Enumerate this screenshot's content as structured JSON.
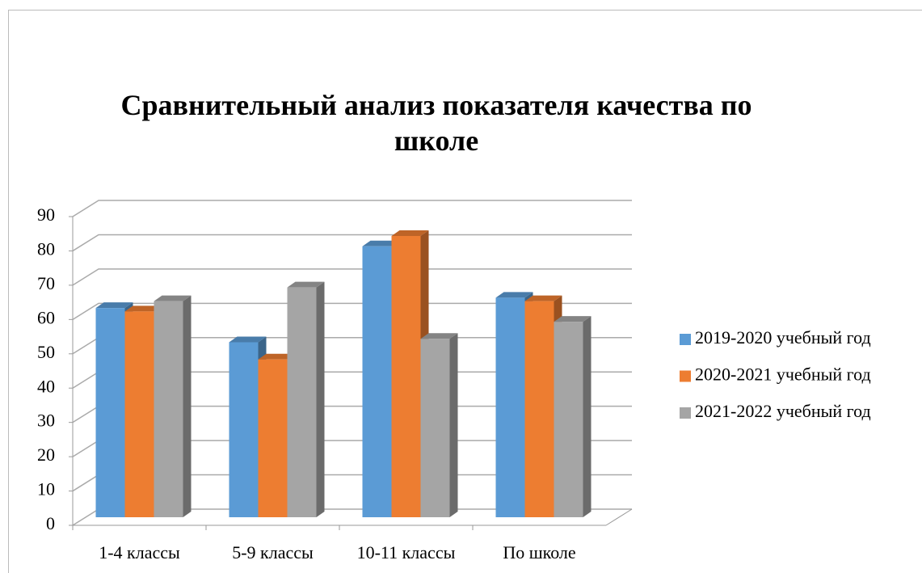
{
  "chart_data": {
    "type": "bar3d",
    "title": "Сравнительный анализ показателя качества по школе",
    "categories": [
      "1-4 классы",
      "5-9 классы",
      "10-11 классы",
      "По школе"
    ],
    "series": [
      {
        "name": "2019-2020 учебный год",
        "color": "#5b9bd5",
        "values": [
          61,
          51,
          79,
          64
        ]
      },
      {
        "name": "2020-2021 учебный год",
        "color": "#ed7d31",
        "values": [
          60,
          46,
          82,
          63
        ]
      },
      {
        "name": "2021-2022 учебный год",
        "color": "#a5a5a5",
        "values": [
          63,
          67,
          52,
          57
        ]
      }
    ],
    "ylim": [
      0,
      90
    ],
    "yticks": [
      0,
      10,
      20,
      30,
      40,
      50,
      60,
      70,
      80,
      90
    ],
    "grid": true,
    "legend": "right"
  }
}
